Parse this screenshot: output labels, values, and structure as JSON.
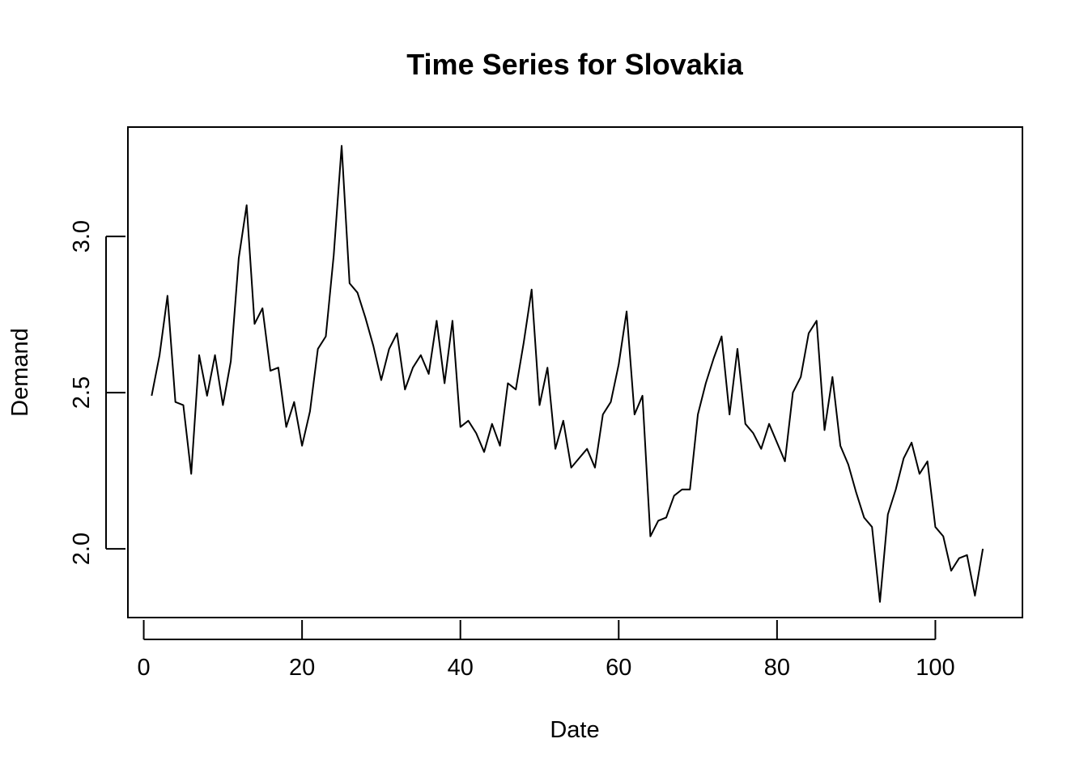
{
  "chart_data": {
    "type": "line",
    "title": "Time Series for Slovakia",
    "xlabel": "Date",
    "ylabel": "Demand",
    "xlim": [
      -2,
      111
    ],
    "ylim": [
      1.78,
      3.35
    ],
    "x_ticks": [
      0,
      20,
      40,
      60,
      80,
      100
    ],
    "y_ticks": [
      2.0,
      2.5,
      3.0
    ],
    "y_tick_labels": [
      "2.0",
      "2.5",
      "3.0"
    ],
    "grid": false,
    "legend": "none",
    "line_color": "#000000",
    "series": [
      {
        "x_start": 1,
        "values": [
          2.49,
          2.62,
          2.81,
          2.47,
          2.46,
          2.24,
          2.62,
          2.49,
          2.62,
          2.46,
          2.6,
          2.93,
          3.1,
          2.72,
          2.77,
          2.57,
          2.58,
          2.39,
          2.47,
          2.33,
          2.44,
          2.64,
          2.68,
          2.94,
          3.29,
          2.85,
          2.82,
          2.74,
          2.65,
          2.54,
          2.64,
          2.69,
          2.51,
          2.58,
          2.62,
          2.56,
          2.73,
          2.53,
          2.73,
          2.39,
          2.41,
          2.37,
          2.31,
          2.4,
          2.33,
          2.53,
          2.51,
          2.66,
          2.83,
          2.46,
          2.58,
          2.32,
          2.41,
          2.26,
          2.29,
          2.32,
          2.26,
          2.43,
          2.47,
          2.59,
          2.76,
          2.43,
          2.49,
          2.04,
          2.09,
          2.1,
          2.17,
          2.19,
          2.19,
          2.43,
          2.53,
          2.61,
          2.68,
          2.43,
          2.64,
          2.4,
          2.37,
          2.32,
          2.4,
          2.34,
          2.28,
          2.5,
          2.55,
          2.69,
          2.73,
          2.38,
          2.55,
          2.33,
          2.27,
          2.18,
          2.1,
          2.07,
          1.83,
          2.11,
          2.19,
          2.29,
          2.34,
          2.24,
          2.28,
          2.07,
          2.04,
          1.93,
          1.97,
          1.98,
          1.85,
          2.0
        ]
      }
    ]
  }
}
